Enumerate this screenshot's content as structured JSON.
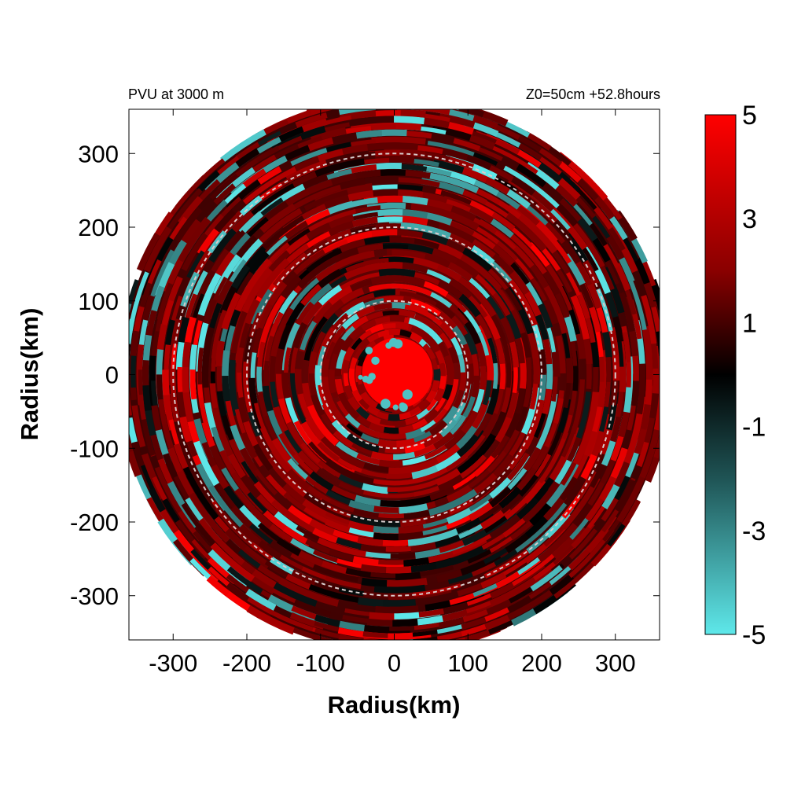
{
  "chart_data": {
    "type": "heatmap",
    "projection": "polar field on cartesian km grid",
    "title_left": "PVU at  3000 m",
    "title_right": "Z0=50cm  +52.8hours",
    "xlabel": "Radius(km)",
    "ylabel": "Radius(km)",
    "xlim": [
      -360,
      360
    ],
    "ylim": [
      -360,
      360
    ],
    "x_ticks": [
      -300,
      -200,
      -100,
      0,
      100,
      200,
      300
    ],
    "y_ticks": [
      300,
      200,
      100,
      0,
      -100,
      -200,
      -300
    ],
    "x_tick_labels": [
      "-300",
      "-200",
      "-100",
      "0",
      "100",
      "200",
      "300"
    ],
    "y_tick_labels": [
      "300",
      "200",
      "100",
      "0",
      "-100",
      "-200",
      "-300"
    ],
    "data_radius_km": 370,
    "reference_circles_km": [
      100,
      200,
      300
    ],
    "colorbar": {
      "range": [
        -5,
        5
      ],
      "ticks": [
        5,
        3,
        1,
        -1,
        -3,
        -5
      ],
      "tick_labels": [
        "5",
        "3",
        "1",
        "-1",
        "-3",
        "-5"
      ],
      "colors": {
        "max": "#ff0000",
        "zero": "#000000",
        "min": "#5ee8ea"
      }
    },
    "field_description": {
      "core_value": 5,
      "core_radius_km": 45,
      "dominant_sign": "positive",
      "negative_features": "scattered cyan patches in spiral bands"
    }
  }
}
